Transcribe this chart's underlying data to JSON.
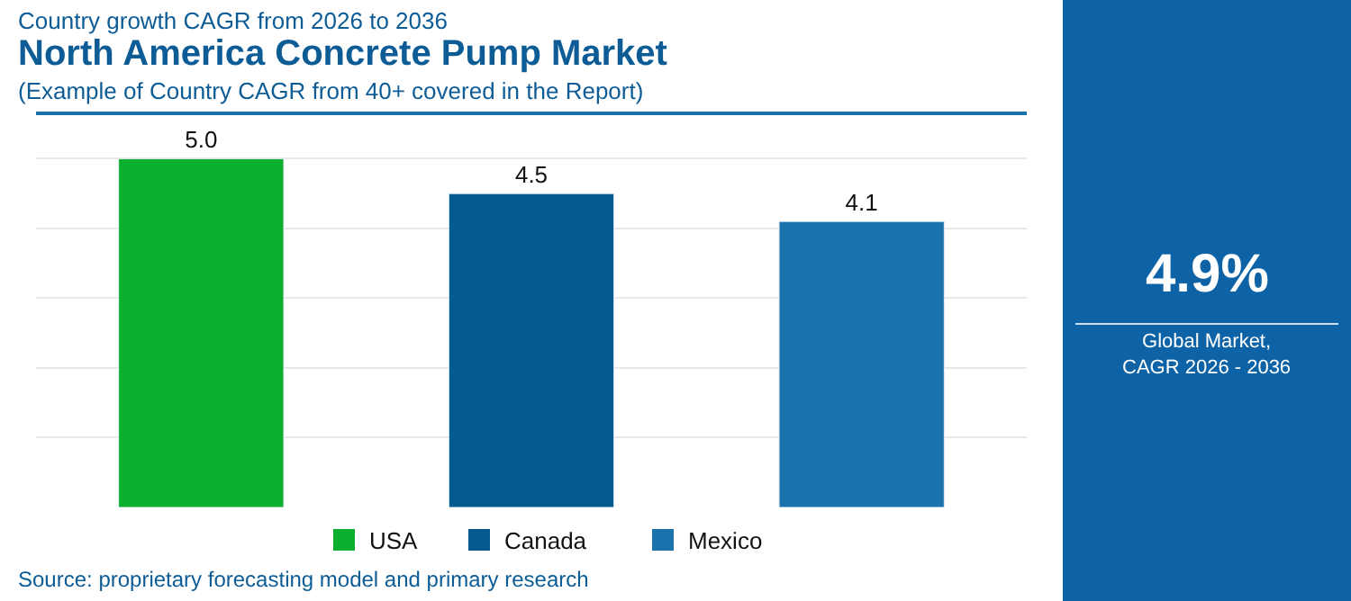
{
  "chart_data": {
    "type": "bar",
    "title": "North America Concrete Pump Market",
    "subtitle": "(Example of Country CAGR from 40+ covered in the Report)",
    "categories": [
      null,
      null,
      null
    ],
    "values": [
      5.0,
      4.5,
      4.1
    ],
    "colors": [
      "#0aaf2e",
      "#055a8e",
      "#1b73ad"
    ],
    "value_labels": [
      "5.0",
      "4.5",
      "4.1"
    ],
    "grid": "y",
    "tick_labels": false,
    "annotations": [
      "Country growth CAGR from 2026 to 2036",
      "4.9%",
      "Global Market, CAGR 2026 - 2036",
      "Source: proprietary forecasting model and primary research",
      "USA",
      "Canada",
      "Mexico"
    ]
  }
}
